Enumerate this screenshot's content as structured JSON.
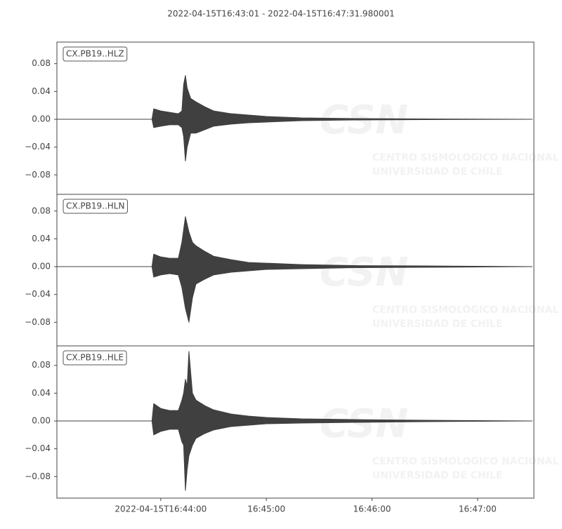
{
  "title": "2022-04-15T16:43:01  -  2022-04-15T16:47:31.980001",
  "x_axis": {
    "xlim": [
      "2022-04-15T16:43:01",
      "2022-04-15T16:47:31.980001"
    ],
    "xticks": [
      {
        "value": "2022-04-15T16:44:00",
        "label": "2022-04-15T16:44:00"
      },
      {
        "value": "2022-04-15T16:45:00",
        "label": "16:45:00"
      },
      {
        "value": "2022-04-15T16:46:00",
        "label": "16:46:00"
      },
      {
        "value": "2022-04-15T16:47:00",
        "label": "16:47:00"
      }
    ]
  },
  "watermark": [
    "CSN",
    "CENTRO SISMOLÓGICO NACIONAL",
    "UNIVERSIDAD DE CHILE"
  ],
  "chart_data": [
    {
      "type": "waveform",
      "label": "CX.PB19..HLZ",
      "color": "#404040",
      "ylim": [
        -0.108,
        0.111
      ],
      "yticks": [
        0.08,
        0.04,
        {
          "value": 0,
          "label": "0.00"
        },
        {
          "value": -0.04,
          "label": "−0.04"
        },
        {
          "value": -0.08,
          "label": "−0.08"
        }
      ],
      "x": [
        "2022-04-15T16:43:01",
        "2022-04-15T16:43:55",
        "2022-04-15T16:43:56",
        "2022-04-15T16:44:00",
        "2022-04-15T16:44:05",
        "2022-04-15T16:44:10",
        "2022-04-15T16:44:12",
        "2022-04-15T16:44:13",
        "2022-04-15T16:44:14",
        "2022-04-15T16:44:15",
        "2022-04-15T16:44:17",
        "2022-04-15T16:44:20",
        "2022-04-15T16:44:25",
        "2022-04-15T16:44:30",
        "2022-04-15T16:44:40",
        "2022-04-15T16:44:50",
        "2022-04-15T16:45:00",
        "2022-04-15T16:45:20",
        "2022-04-15T16:45:50",
        "2022-04-15T16:46:30",
        "2022-04-15T16:47:31"
      ],
      "upper": [
        0,
        0,
        0.015,
        0.012,
        0.01,
        0.008,
        0.012,
        0.05,
        0.063,
        0.045,
        0.03,
        0.025,
        0.018,
        0.012,
        0.008,
        0.006,
        0.004,
        0.002,
        0.001,
        0.0005,
        0
      ],
      "lower": [
        0,
        0,
        -0.012,
        -0.01,
        -0.008,
        -0.008,
        -0.012,
        -0.025,
        -0.06,
        -0.04,
        -0.02,
        -0.02,
        -0.015,
        -0.01,
        -0.007,
        -0.005,
        -0.004,
        -0.002,
        -0.001,
        -0.0005,
        0
      ]
    },
    {
      "type": "waveform",
      "label": "CX.PB19..HLN",
      "color": "#404040",
      "ylim": [
        -0.114,
        0.104
      ],
      "yticks": [
        0.08,
        0.04,
        {
          "value": 0,
          "label": "0.00"
        },
        {
          "value": -0.04,
          "label": "−0.04"
        },
        {
          "value": -0.08,
          "label": "−0.08"
        }
      ],
      "x": [
        "2022-04-15T16:43:01",
        "2022-04-15T16:43:55",
        "2022-04-15T16:43:56",
        "2022-04-15T16:44:00",
        "2022-04-15T16:44:05",
        "2022-04-15T16:44:10",
        "2022-04-15T16:44:12",
        "2022-04-15T16:44:14",
        "2022-04-15T16:44:16",
        "2022-04-15T16:44:18",
        "2022-04-15T16:44:20",
        "2022-04-15T16:44:25",
        "2022-04-15T16:44:30",
        "2022-04-15T16:44:40",
        "2022-04-15T16:44:50",
        "2022-04-15T16:45:00",
        "2022-04-15T16:45:20",
        "2022-04-15T16:45:50",
        "2022-04-15T16:46:30",
        "2022-04-15T16:47:31"
      ],
      "upper": [
        0,
        0,
        0.018,
        0.014,
        0.012,
        0.012,
        0.035,
        0.072,
        0.05,
        0.035,
        0.03,
        0.022,
        0.015,
        0.01,
        0.006,
        0.005,
        0.003,
        0.0015,
        0.001,
        0
      ],
      "lower": [
        0,
        0,
        -0.015,
        -0.012,
        -0.01,
        -0.012,
        -0.03,
        -0.06,
        -0.08,
        -0.045,
        -0.025,
        -0.018,
        -0.012,
        -0.008,
        -0.006,
        -0.004,
        -0.003,
        -0.0015,
        -0.001,
        0
      ]
    },
    {
      "type": "waveform",
      "label": "CX.PB19..HLE",
      "color": "#404040",
      "ylim": [
        -0.111,
        0.108
      ],
      "yticks": [
        0.08,
        0.04,
        {
          "value": 0,
          "label": "0.00"
        },
        {
          "value": -0.04,
          "label": "−0.04"
        },
        {
          "value": -0.08,
          "label": "−0.08"
        }
      ],
      "x": [
        "2022-04-15T16:43:01",
        "2022-04-15T16:43:55",
        "2022-04-15T16:43:56",
        "2022-04-15T16:44:00",
        "2022-04-15T16:44:05",
        "2022-04-15T16:44:10",
        "2022-04-15T16:44:12",
        "2022-04-15T16:44:13",
        "2022-04-15T16:44:14",
        "2022-04-15T16:44:15",
        "2022-04-15T16:44:16",
        "2022-04-15T16:44:18",
        "2022-04-15T16:44:20",
        "2022-04-15T16:44:25",
        "2022-04-15T16:44:30",
        "2022-04-15T16:44:40",
        "2022-04-15T16:44:50",
        "2022-04-15T16:45:00",
        "2022-04-15T16:45:20",
        "2022-04-15T16:45:50",
        "2022-04-15T16:46:30",
        "2022-04-15T16:47:31"
      ],
      "upper": [
        0,
        0,
        0.025,
        0.018,
        0.015,
        0.015,
        0.03,
        0.04,
        0.06,
        0.05,
        0.1,
        0.04,
        0.03,
        0.022,
        0.016,
        0.01,
        0.007,
        0.005,
        0.003,
        0.002,
        0.001,
        0
      ],
      "lower": [
        0,
        0,
        -0.02,
        -0.015,
        -0.012,
        -0.012,
        -0.03,
        -0.035,
        -0.1,
        -0.07,
        -0.05,
        -0.035,
        -0.025,
        -0.018,
        -0.013,
        -0.008,
        -0.006,
        -0.004,
        -0.003,
        -0.002,
        -0.001,
        0
      ]
    }
  ]
}
